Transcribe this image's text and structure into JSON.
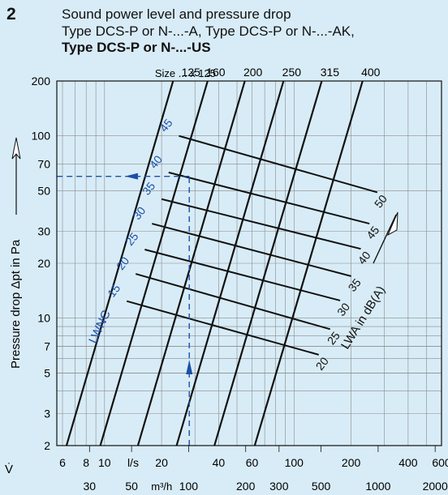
{
  "figure_number": "2",
  "heading": {
    "line1": "Sound power level and pressure drop",
    "line2": "Type DCS-P or N-...-A, Type DCS-P or N-...-AK,",
    "line3": "Type DCS-P or N-...-US"
  },
  "chart_data": {
    "type": "line",
    "title": "Sound power level and pressure drop",
    "ylabel": "Pressure drop Δpt in Pa",
    "y_scale": "log",
    "ylim": [
      2,
      200
    ],
    "y_ticks": [
      2,
      3,
      5,
      7,
      10,
      20,
      30,
      50,
      70,
      100,
      200
    ],
    "x_scale": "log",
    "x_symbol": "V̇",
    "x_ls": {
      "unit_label": "l/s",
      "range": [
        5.6,
        600
      ],
      "ticks": [
        6,
        8,
        10,
        20,
        40,
        60,
        100,
        200,
        400,
        600
      ]
    },
    "x_m3h": {
      "unit_label": "m³/h",
      "ticks": [
        30,
        50,
        100,
        200,
        300,
        500,
        1000,
        2000
      ]
    },
    "size_axis_label": "Size ... x 125",
    "size_curves": [
      {
        "name": "125",
        "points": [
          [
            6.3,
            2
          ],
          [
            23,
            200
          ]
        ]
      },
      {
        "name": "160",
        "points": [
          [
            9.5,
            2
          ],
          [
            35,
            200
          ]
        ]
      },
      {
        "name": "200",
        "points": [
          [
            15,
            2
          ],
          [
            55,
            200
          ]
        ]
      },
      {
        "name": "250",
        "points": [
          [
            24,
            2
          ],
          [
            88,
            200
          ]
        ]
      },
      {
        "name": "315",
        "points": [
          [
            38,
            2
          ],
          [
            140,
            200
          ]
        ]
      },
      {
        "name": "400",
        "points": [
          [
            62,
            2
          ],
          [
            230,
            200
          ]
        ]
      }
    ],
    "lwnc_label": "LWNC",
    "lwnc_lines": [
      {
        "value": 15,
        "label": "15",
        "points": [
          [
            13.1,
            12.4
          ],
          [
            135,
            6.3
          ]
        ]
      },
      {
        "value": 20,
        "label": "20",
        "points": [
          [
            14.6,
            17.5
          ],
          [
            155,
            8.7
          ]
        ]
      },
      {
        "value": 25,
        "label": "25",
        "points": [
          [
            16.3,
            23.8
          ],
          [
            175,
            12.5
          ]
        ]
      },
      {
        "value": 30,
        "label": "30",
        "points": [
          [
            17.8,
            33
          ],
          [
            200,
            17
          ]
        ]
      },
      {
        "value": 35,
        "label": "35",
        "points": [
          [
            20,
            45
          ],
          [
            225,
            24
          ]
        ]
      },
      {
        "value": 40,
        "label": "40",
        "points": [
          [
            21.8,
            63
          ],
          [
            250,
            33
          ]
        ]
      },
      {
        "value": 45,
        "label": "45",
        "points": [
          [
            24.7,
            100
          ],
          [
            275,
            49
          ]
        ]
      }
    ],
    "lwa_label": "LWA in dB(A)",
    "lwa_labels": [
      "20",
      "25",
      "30",
      "35",
      "40",
      "45",
      "50"
    ],
    "example": {
      "volume_flow_ls": 28,
      "pressure_drop_pa": 60,
      "size": "125"
    }
  }
}
